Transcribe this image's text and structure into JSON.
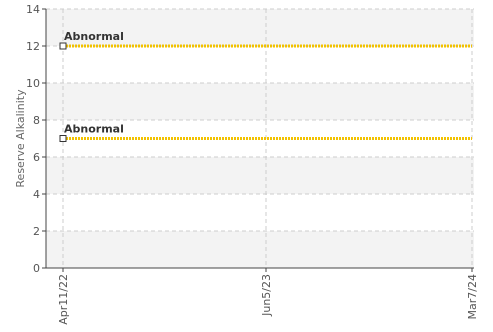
{
  "chart_data": {
    "type": "line",
    "title": "",
    "xlabel": "",
    "ylabel": "Reserve Alkalinity",
    "ylim": [
      0,
      14
    ],
    "yticks": [
      0,
      2,
      4,
      6,
      8,
      10,
      12,
      14
    ],
    "x_ticks": [
      "Apr11/22",
      "Jun5/23",
      "Mar7/24"
    ],
    "grid": true,
    "banded_background": true,
    "series": [
      {
        "color": "#f2c200",
        "x": [
          "Apr11/22",
          "Mar7/24"
        ],
        "y": [
          12,
          12
        ],
        "annotation": "Abnormal"
      },
      {
        "color": "#f2c200",
        "x": [
          "Apr11/22",
          "Mar7/24"
        ],
        "y": [
          7,
          7
        ],
        "annotation": "Abnormal"
      }
    ]
  }
}
